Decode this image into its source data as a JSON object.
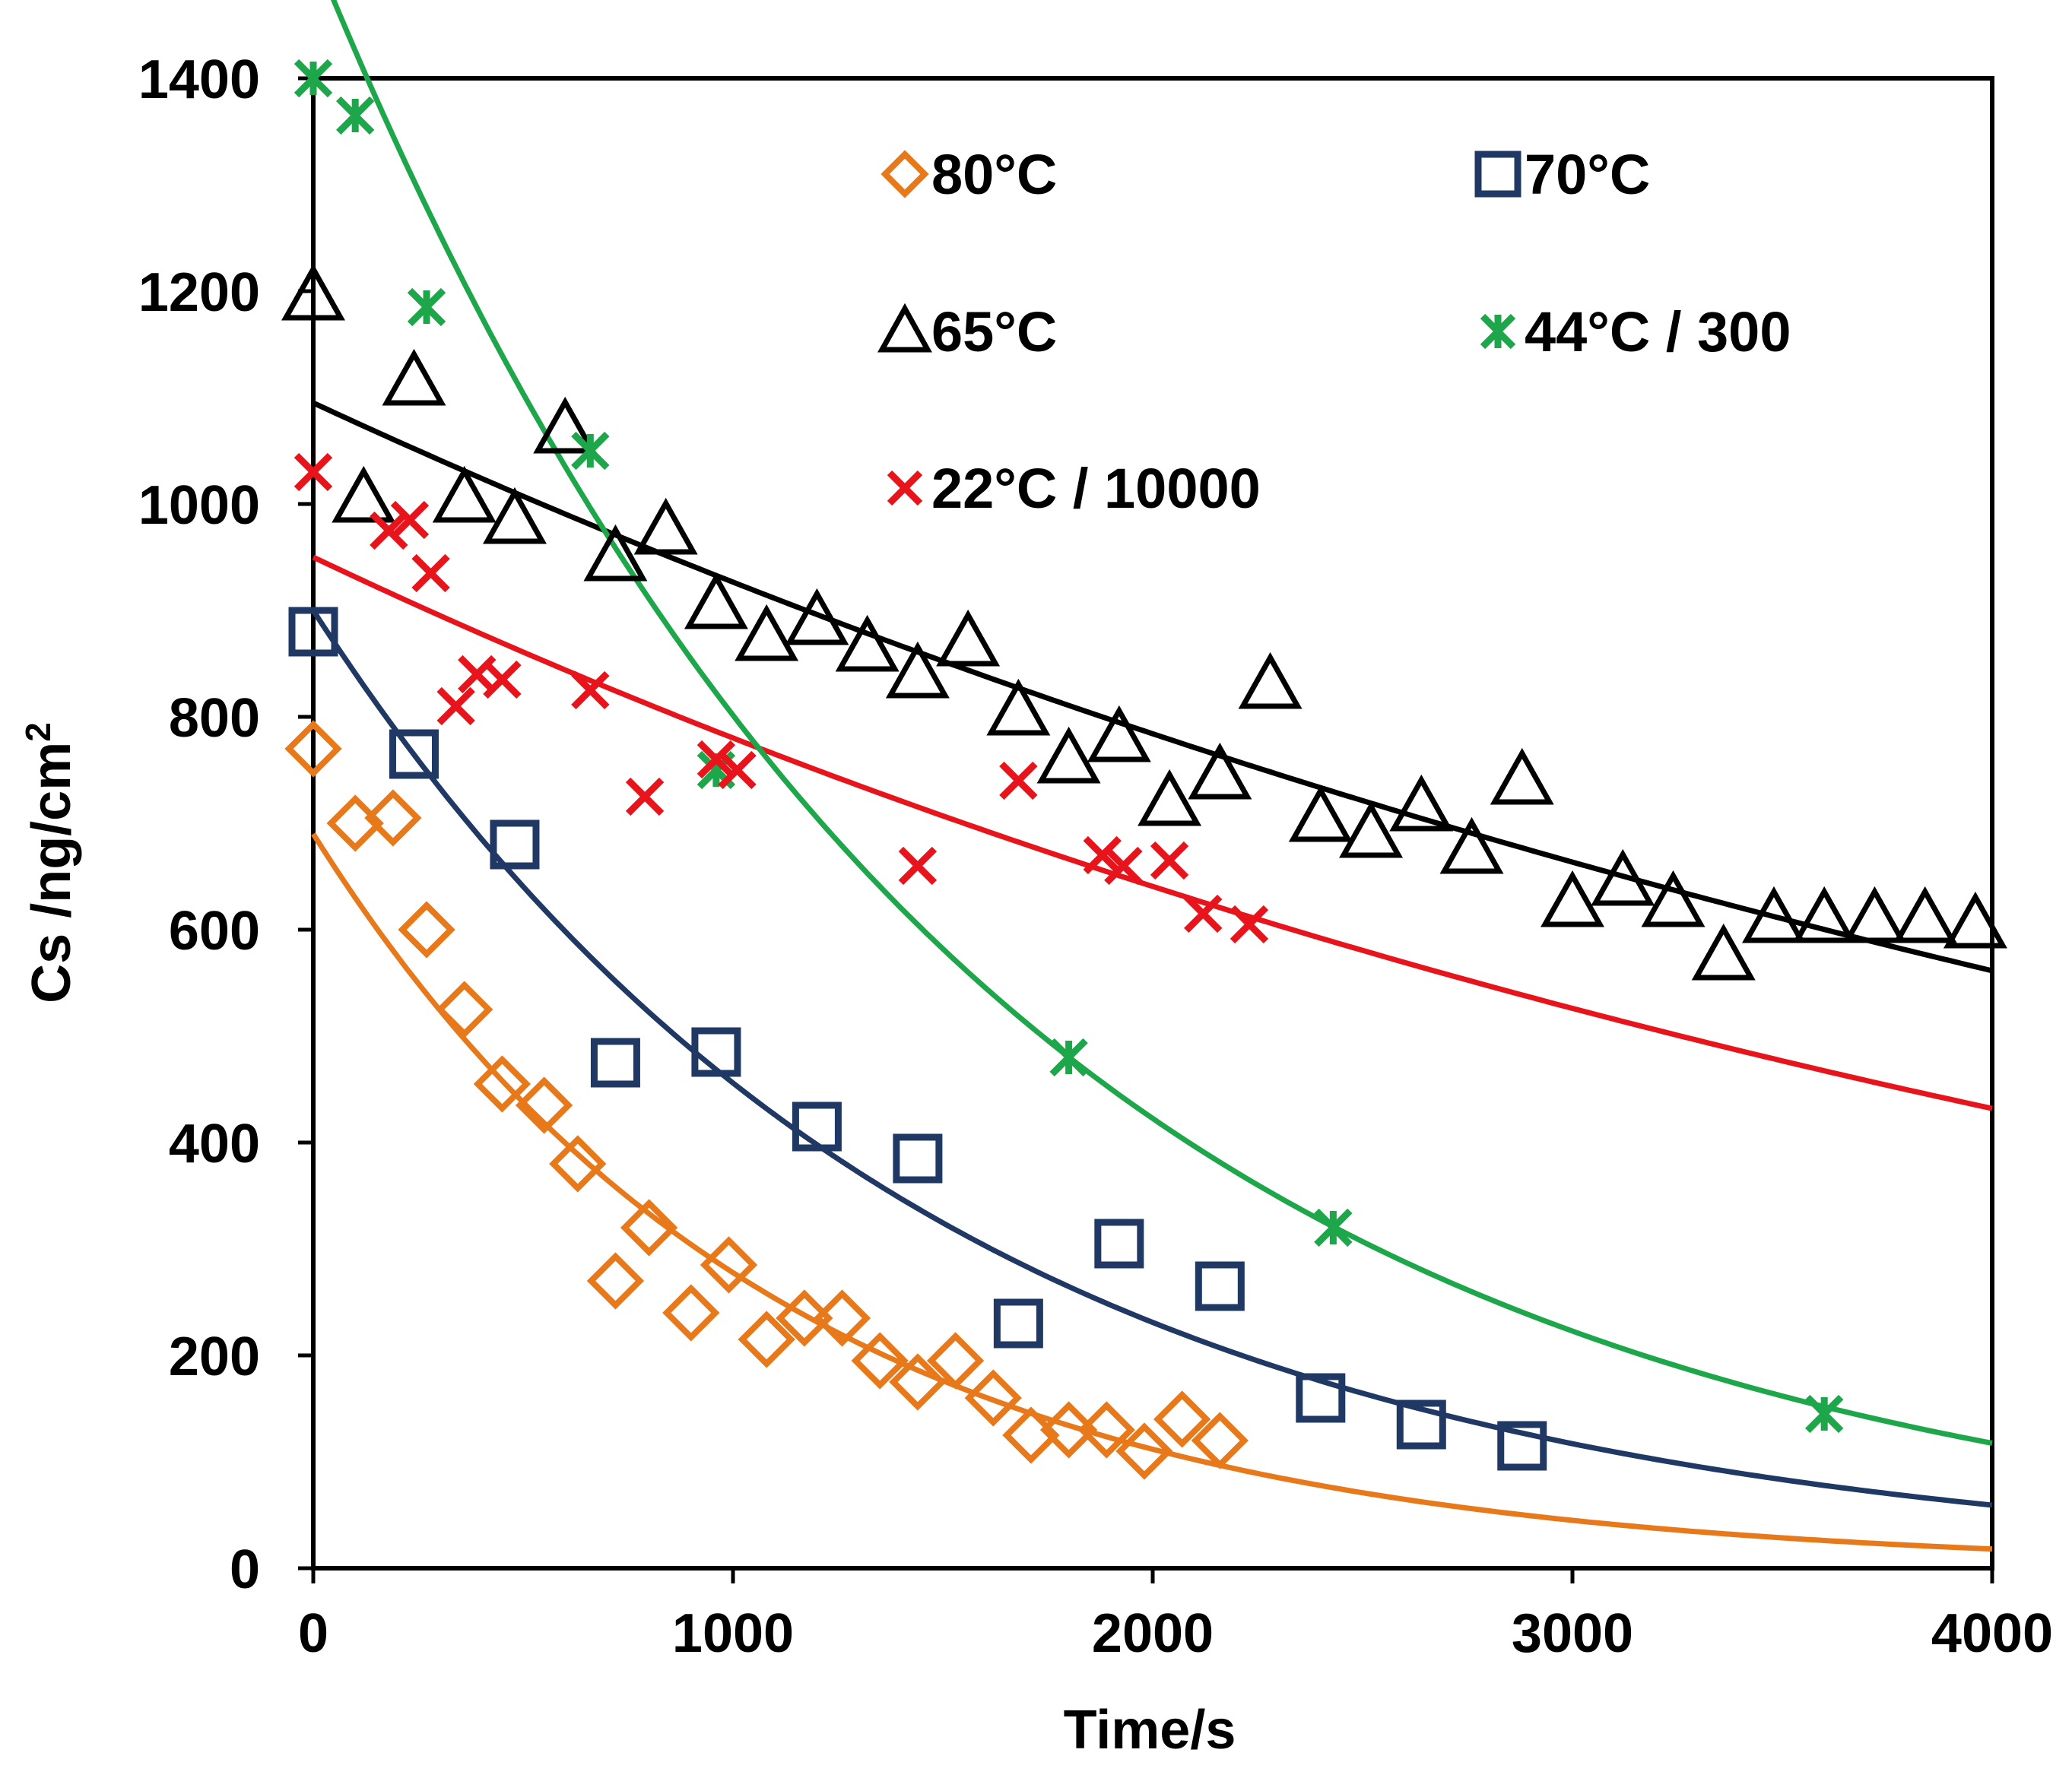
{
  "chart_data": {
    "type": "scatter",
    "title": "",
    "xlabel": "Time/s",
    "ylabel": "Cs /ng/cm",
    "ylabel_sup": "2",
    "xlim": [
      0,
      4000
    ],
    "ylim": [
      0,
      1400
    ],
    "x_ticks": [
      0,
      1000,
      2000,
      3000,
      4000
    ],
    "y_ticks": [
      0,
      200,
      400,
      600,
      800,
      1000,
      1200,
      1400
    ],
    "grid": false,
    "legend_position": "top-right",
    "series": [
      {
        "name": "80°C",
        "marker": "diamond",
        "color": "#E8791B",
        "points": [
          [
            0,
            770
          ],
          [
            100,
            700
          ],
          [
            190,
            705
          ],
          [
            270,
            600
          ],
          [
            360,
            525
          ],
          [
            450,
            455
          ],
          [
            550,
            435
          ],
          [
            630,
            380
          ],
          [
            720,
            270
          ],
          [
            800,
            320
          ],
          [
            900,
            240
          ],
          [
            990,
            285
          ],
          [
            1080,
            215
          ],
          [
            1170,
            235
          ],
          [
            1260,
            235
          ],
          [
            1350,
            195
          ],
          [
            1440,
            175
          ],
          [
            1530,
            195
          ],
          [
            1620,
            160
          ],
          [
            1710,
            125
          ],
          [
            1800,
            130
          ],
          [
            1890,
            130
          ],
          [
            1980,
            110
          ],
          [
            2070,
            140
          ],
          [
            2160,
            120
          ]
        ],
        "fit": {
          "a": 690,
          "k": 0.00091
        }
      },
      {
        "name": "70°C",
        "marker": "square",
        "color": "#1F3864",
        "points": [
          [
            0,
            880
          ],
          [
            240,
            765
          ],
          [
            480,
            680
          ],
          [
            720,
            475
          ],
          [
            960,
            485
          ],
          [
            1200,
            415
          ],
          [
            1440,
            385
          ],
          [
            1680,
            230
          ],
          [
            1920,
            305
          ],
          [
            2160,
            265
          ],
          [
            2400,
            160
          ],
          [
            2640,
            135
          ],
          [
            2880,
            115
          ]
        ],
        "fit": {
          "a": 900,
          "k": 0.00068
        }
      },
      {
        "name": "65°C",
        "marker": "triangle",
        "color": "#000000",
        "points": [
          [
            0,
            1195
          ],
          [
            120,
            1005
          ],
          [
            240,
            1115
          ],
          [
            360,
            1005
          ],
          [
            480,
            985
          ],
          [
            600,
            1070
          ],
          [
            720,
            950
          ],
          [
            840,
            975
          ],
          [
            960,
            905
          ],
          [
            1080,
            875
          ],
          [
            1200,
            890
          ],
          [
            1320,
            865
          ],
          [
            1440,
            840
          ],
          [
            1560,
            870
          ],
          [
            1680,
            805
          ],
          [
            1800,
            760
          ],
          [
            1920,
            780
          ],
          [
            2040,
            720
          ],
          [
            2160,
            745
          ],
          [
            2280,
            830
          ],
          [
            2400,
            705
          ],
          [
            2520,
            690
          ],
          [
            2640,
            715
          ],
          [
            2760,
            675
          ],
          [
            2880,
            740
          ],
          [
            3000,
            625
          ],
          [
            3120,
            645
          ],
          [
            3240,
            625
          ],
          [
            3360,
            575
          ],
          [
            3480,
            610
          ],
          [
            3600,
            610
          ],
          [
            3720,
            610
          ],
          [
            3840,
            610
          ],
          [
            3960,
            605
          ]
        ],
        "fit": {
          "a": 1095,
          "k": 0.000167
        }
      },
      {
        "name": "44°C / 300",
        "marker": "star",
        "color": "#1EA64A",
        "points": [
          [
            0,
            1400
          ],
          [
            100,
            1365
          ],
          [
            270,
            1185
          ],
          [
            660,
            1050
          ],
          [
            960,
            750
          ],
          [
            1800,
            480
          ],
          [
            2430,
            320
          ],
          [
            3600,
            145
          ]
        ],
        "fit": {
          "a": 1520,
          "k": 0.00064
        }
      },
      {
        "name": "22°C / 10000",
        "marker": "x",
        "color": "#E8141C",
        "points": [
          [
            0,
            1030
          ],
          [
            180,
            975
          ],
          [
            230,
            985
          ],
          [
            280,
            935
          ],
          [
            340,
            810
          ],
          [
            390,
            840
          ],
          [
            450,
            835
          ],
          [
            660,
            825
          ],
          [
            790,
            725
          ],
          [
            960,
            760
          ],
          [
            1010,
            750
          ],
          [
            1440,
            660
          ],
          [
            1680,
            740
          ],
          [
            1880,
            670
          ],
          [
            1930,
            660
          ],
          [
            2040,
            665
          ],
          [
            2120,
            615
          ],
          [
            2230,
            605
          ]
        ],
        "fit": {
          "a": 950,
          "k": 0.000197
        }
      }
    ]
  }
}
